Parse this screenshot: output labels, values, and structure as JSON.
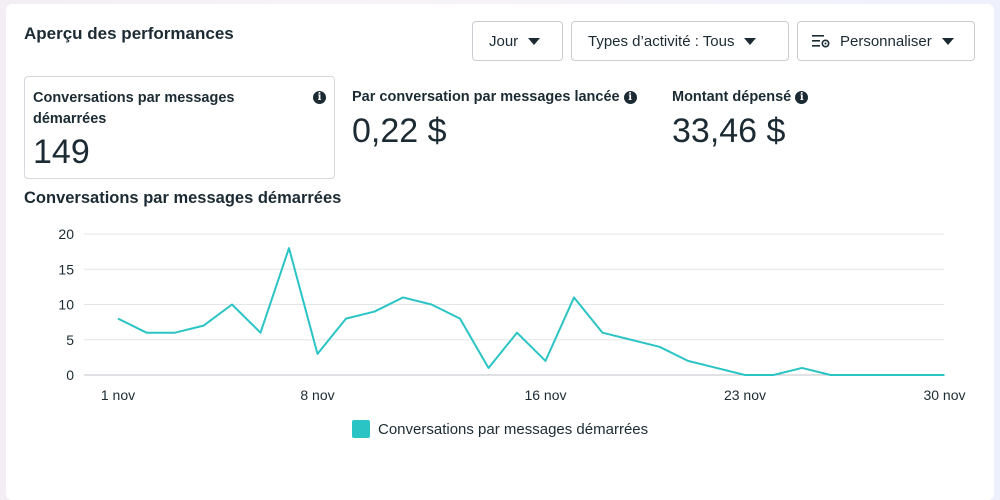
{
  "header": {
    "title": "Aperçu des performances",
    "buttons": [
      {
        "label": "Jour"
      },
      {
        "label": "Types d’activité : Tous"
      },
      {
        "label": "Personnaliser"
      }
    ]
  },
  "metrics": [
    {
      "label": "Conversations par messages démarrées",
      "value": "149"
    },
    {
      "label": "Par conversation par messages lancée",
      "value": "0,22 $"
    },
    {
      "label": "Montant dépensé",
      "value": "33,46 $"
    }
  ],
  "colors": {
    "series": "#2bc4c4",
    "grid": "#e3e5e8",
    "text": "#1c2b33"
  },
  "chart_data": {
    "type": "line",
    "title": "Conversations par messages démarrées",
    "x_ticks": [
      "1 nov",
      "8 nov",
      "16 nov",
      "23 nov",
      "30 nov"
    ],
    "y_ticks": [
      0,
      5,
      10,
      15,
      20
    ],
    "ylim": [
      0,
      20
    ],
    "grid": true,
    "legend_position": "bottom-center",
    "series": [
      {
        "name": "Conversations par messages démarrées",
        "color": "#2bc4c4",
        "x": [
          "1 nov",
          "2 nov",
          "3 nov",
          "4 nov",
          "5 nov",
          "6 nov",
          "7 nov",
          "8 nov",
          "9 nov",
          "10 nov",
          "11 nov",
          "12 nov",
          "13 nov",
          "14 nov",
          "15 nov",
          "16 nov",
          "17 nov",
          "18 nov",
          "19 nov",
          "20 nov",
          "21 nov",
          "22 nov",
          "23 nov",
          "24 nov",
          "25 nov",
          "26 nov",
          "27 nov",
          "28 nov",
          "29 nov",
          "30 nov"
        ],
        "values": [
          8,
          6,
          6,
          7,
          10,
          6,
          18,
          3,
          8,
          9,
          11,
          10,
          8,
          1,
          6,
          2,
          11,
          6,
          5,
          4,
          2,
          1,
          0,
          0,
          1,
          0,
          0,
          0,
          0,
          0
        ]
      }
    ]
  }
}
